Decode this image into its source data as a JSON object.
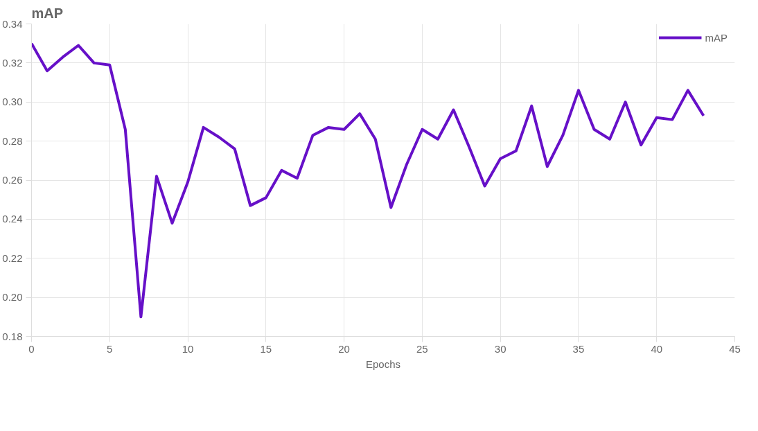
{
  "chart_data": {
    "type": "line",
    "title": "mAP",
    "xlabel": "Epochs",
    "x": [
      0,
      1,
      2,
      3,
      4,
      5,
      6,
      7,
      8,
      9,
      10,
      11,
      12,
      13,
      14,
      15,
      16,
      17,
      18,
      19,
      20,
      21,
      22,
      23,
      24,
      25,
      26,
      27,
      28,
      29,
      30,
      31,
      32,
      33,
      34,
      35,
      36,
      37,
      38,
      39,
      40,
      41,
      42,
      43
    ],
    "series": [
      {
        "name": "mAP",
        "color": "#6610c8",
        "values": [
          0.33,
          0.316,
          0.323,
          0.329,
          0.32,
          0.319,
          0.286,
          0.19,
          0.262,
          0.238,
          0.259,
          0.287,
          0.282,
          0.276,
          0.247,
          0.251,
          0.265,
          0.261,
          0.283,
          0.287,
          0.286,
          0.294,
          0.281,
          0.246,
          0.268,
          0.286,
          0.281,
          0.296,
          0.277,
          0.257,
          0.271,
          0.275,
          0.298,
          0.267,
          0.283,
          0.306,
          0.286,
          0.281,
          0.3,
          0.278,
          0.292,
          0.291,
          0.306,
          0.293
        ]
      }
    ],
    "xlim": [
      0,
      45
    ],
    "xticks": [
      0,
      5,
      10,
      15,
      20,
      25,
      30,
      35,
      40,
      45
    ],
    "ylim": [
      0.18,
      0.34
    ],
    "yticks": [
      {
        "value": 0.18,
        "label": "0.18"
      },
      {
        "value": 0.2,
        "label": "0.20"
      },
      {
        "value": 0.22,
        "label": "0.22"
      },
      {
        "value": 0.24,
        "label": "0.24"
      },
      {
        "value": 0.26,
        "label": "0.26"
      },
      {
        "value": 0.28,
        "label": "0.28"
      },
      {
        "value": 0.3,
        "label": "0.30"
      },
      {
        "value": 0.32,
        "label": "0.32"
      },
      {
        "value": 0.34,
        "label": "0.34"
      }
    ],
    "grid": true,
    "legend": "top right",
    "marker": "none",
    "line_style": "solid"
  }
}
